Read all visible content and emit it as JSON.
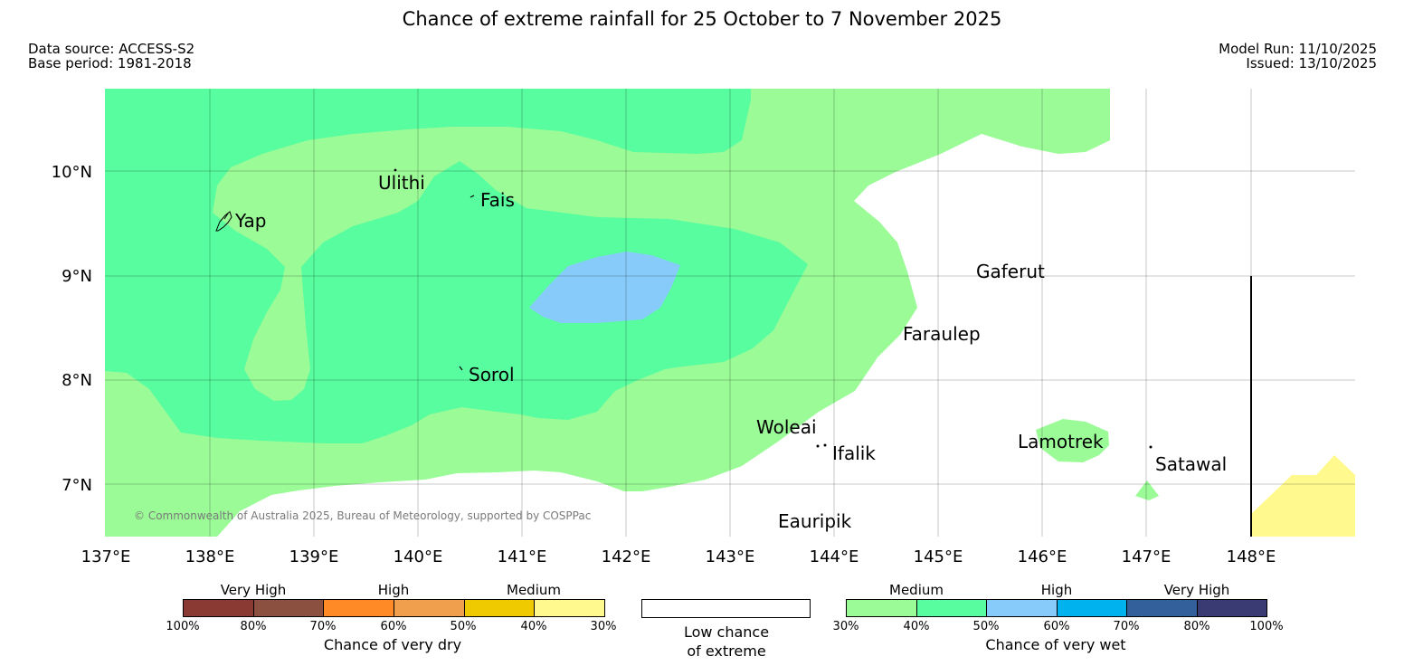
{
  "title": "Chance of extreme rainfall for 25 October to 7 November 2025",
  "meta": {
    "data_source": "Data source: ACCESS-S2",
    "base_period": "Base period: 1981-2018",
    "model_run": "Model Run: 11/10/2025",
    "issued": "Issued: 13/10/2025"
  },
  "map": {
    "lat_labels": [
      "10°N",
      "9°N",
      "8°N",
      "7°N"
    ],
    "lon_labels": [
      "137°E",
      "138°E",
      "139°E",
      "140°E",
      "141°E",
      "142°E",
      "143°E",
      "144°E",
      "145°E",
      "146°E",
      "147°E",
      "148°E"
    ],
    "places": {
      "ulithi": "Ulithi",
      "fais": "Fais",
      "yap": "Yap",
      "gaferut": "Gaferut",
      "faraulep": "Faraulep",
      "sorol": "Sorol",
      "woleai": "Woleai",
      "ifalik": "Ifalik",
      "lamotrek": "Lamotrek",
      "satawal": "Satawal",
      "eauripik": "Eauripik"
    },
    "copyright": "© Commonwealth of Australia 2025, Bureau of Meteorology, supported by COSPPac"
  },
  "colors": {
    "medium_wet": "#9afb97",
    "high_wet": "#57fd9f",
    "high2_wet": "#87cbfb",
    "medium_dry": "#fff98e"
  },
  "legend": {
    "dry": {
      "groups": [
        "Very High",
        "High",
        "Medium"
      ],
      "colors": [
        "#8b3a33",
        "#8c5040",
        "#ff8a26",
        "#f0a04c",
        "#f0ca00",
        "#fff98e"
      ],
      "ticks": [
        "100%",
        "80%",
        "70%",
        "60%",
        "50%",
        "40%",
        "30%"
      ],
      "caption": "Chance of very dry"
    },
    "low": {
      "caption_line1": "Low chance",
      "caption_line2": "of extreme"
    },
    "wet": {
      "groups": [
        "Medium",
        "High",
        "Very High"
      ],
      "colors": [
        "#9afb97",
        "#57fd9f",
        "#87cbfb",
        "#00b2ee",
        "#33609a",
        "#3a3b73"
      ],
      "ticks": [
        "30%",
        "40%",
        "50%",
        "60%",
        "70%",
        "80%",
        "100%"
      ],
      "caption": "Chance of very wet"
    }
  }
}
